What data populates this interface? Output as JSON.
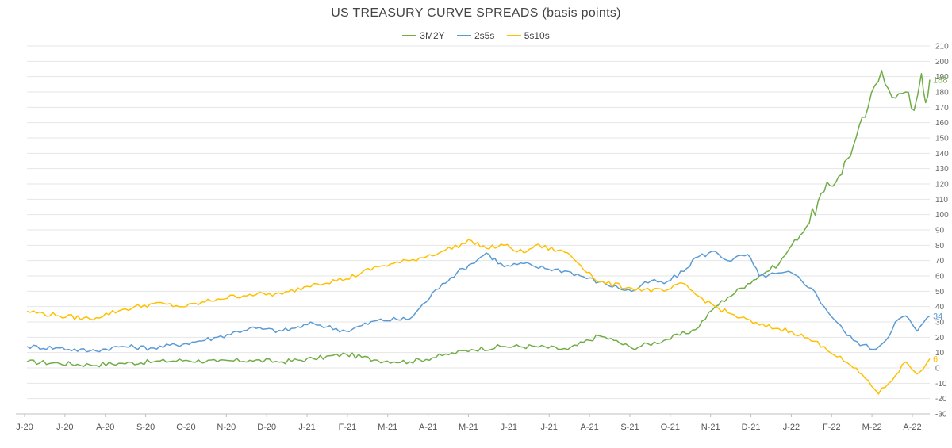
{
  "chart_data": {
    "type": "line",
    "title": "US TREASURY CURVE SPREADS (basis points)",
    "xlabel": "",
    "ylabel": "",
    "ylim": [
      -30,
      210
    ],
    "y_ticks": [
      -30,
      -20,
      -10,
      0,
      10,
      20,
      30,
      40,
      50,
      60,
      70,
      80,
      90,
      100,
      110,
      120,
      130,
      140,
      150,
      160,
      170,
      180,
      190,
      200,
      210
    ],
    "x_tick_labels": [
      "J-20",
      "J-20",
      "A-20",
      "S-20",
      "O-20",
      "N-20",
      "D-20",
      "J-21",
      "F-21",
      "M-21",
      "A-21",
      "M-21",
      "J-21",
      "J-21",
      "A-21",
      "S-21",
      "O-21",
      "N-21",
      "D-21",
      "J-22",
      "F-22",
      "M-22",
      "A-22"
    ],
    "x_axis_start": "2020-01-01",
    "x_axis_end": "2022-05-13",
    "grid": true,
    "legend_position": "top-center",
    "series": [
      {
        "name": "3M2Y",
        "color": "#70AD47",
        "end_label": "188",
        "points": [
          [
            "2020-01-01",
            4
          ],
          [
            "2020-02-01",
            3
          ],
          [
            "2020-03-01",
            2
          ],
          [
            "2020-04-01",
            3
          ],
          [
            "2020-05-01",
            4
          ],
          [
            "2020-06-01",
            5
          ],
          [
            "2020-07-01",
            4
          ],
          [
            "2020-08-01",
            5
          ],
          [
            "2020-09-01",
            4
          ],
          [
            "2020-10-01",
            6
          ],
          [
            "2020-11-01",
            9
          ],
          [
            "2020-12-01",
            5
          ],
          [
            "2021-01-01",
            4
          ],
          [
            "2021-02-01",
            8
          ],
          [
            "2021-03-01",
            12
          ],
          [
            "2021-04-01",
            14
          ],
          [
            "2021-05-01",
            14
          ],
          [
            "2021-06-01",
            12
          ],
          [
            "2021-07-01",
            21
          ],
          [
            "2021-07-15",
            18
          ],
          [
            "2021-08-01",
            13
          ],
          [
            "2021-09-01",
            18
          ],
          [
            "2021-10-01",
            25
          ],
          [
            "2021-10-20",
            40
          ],
          [
            "2021-11-01",
            46
          ],
          [
            "2021-11-20",
            55
          ],
          [
            "2021-12-01",
            60
          ],
          [
            "2021-12-20",
            68
          ],
          [
            "2022-01-01",
            80
          ],
          [
            "2022-01-15",
            92
          ],
          [
            "2022-02-01",
            115
          ],
          [
            "2022-02-15",
            125
          ],
          [
            "2022-03-01",
            145
          ],
          [
            "2022-03-15",
            170
          ],
          [
            "2022-03-28",
            194
          ],
          [
            "2022-04-10",
            176
          ],
          [
            "2022-04-20",
            180
          ],
          [
            "2022-04-28",
            168
          ],
          [
            "2022-05-05",
            192
          ],
          [
            "2022-05-09",
            173
          ],
          [
            "2022-05-13",
            188
          ]
        ]
      },
      {
        "name": "2s5s",
        "color": "#5B9BD5",
        "end_label": "34",
        "points": [
          [
            "2020-01-01",
            14
          ],
          [
            "2020-02-01",
            13
          ],
          [
            "2020-03-01",
            11
          ],
          [
            "2020-04-01",
            14
          ],
          [
            "2020-05-01",
            13
          ],
          [
            "2020-06-01",
            16
          ],
          [
            "2020-07-01",
            20
          ],
          [
            "2020-08-01",
            26
          ],
          [
            "2020-09-01",
            24
          ],
          [
            "2020-10-01",
            29
          ],
          [
            "2020-11-01",
            24
          ],
          [
            "2020-12-01",
            31
          ],
          [
            "2021-01-01",
            32
          ],
          [
            "2021-02-01",
            55
          ],
          [
            "2021-02-15",
            62
          ],
          [
            "2021-03-01",
            68
          ],
          [
            "2021-03-15",
            75
          ],
          [
            "2021-04-01",
            66
          ],
          [
            "2021-04-20",
            68
          ],
          [
            "2021-05-01",
            66
          ],
          [
            "2021-06-01",
            63
          ],
          [
            "2021-07-01",
            56
          ],
          [
            "2021-08-01",
            50
          ],
          [
            "2021-08-20",
            57
          ],
          [
            "2021-09-01",
            55
          ],
          [
            "2021-09-20",
            63
          ],
          [
            "2021-10-01",
            72
          ],
          [
            "2021-10-20",
            76
          ],
          [
            "2021-11-01",
            70
          ],
          [
            "2021-11-20",
            74
          ],
          [
            "2021-12-01",
            60
          ],
          [
            "2022-01-01",
            62
          ],
          [
            "2022-01-20",
            52
          ],
          [
            "2022-02-01",
            40
          ],
          [
            "2022-02-20",
            24
          ],
          [
            "2022-03-01",
            18
          ],
          [
            "2022-03-20",
            12
          ],
          [
            "2022-04-01",
            18
          ],
          [
            "2022-04-10",
            30
          ],
          [
            "2022-04-20",
            34
          ],
          [
            "2022-05-01",
            24
          ],
          [
            "2022-05-13",
            34
          ]
        ]
      },
      {
        "name": "5s10s",
        "color": "#FFC000",
        "end_label": "6",
        "points": [
          [
            "2020-01-01",
            37
          ],
          [
            "2020-02-01",
            34
          ],
          [
            "2020-03-01",
            32
          ],
          [
            "2020-04-01",
            38
          ],
          [
            "2020-05-01",
            42
          ],
          [
            "2020-06-01",
            40
          ],
          [
            "2020-07-01",
            45
          ],
          [
            "2020-08-01",
            48
          ],
          [
            "2020-09-01",
            48
          ],
          [
            "2020-10-01",
            55
          ],
          [
            "2020-11-01",
            58
          ],
          [
            "2020-12-01",
            66
          ],
          [
            "2021-01-01",
            70
          ],
          [
            "2021-02-01",
            76
          ],
          [
            "2021-03-01",
            83
          ],
          [
            "2021-03-15",
            78
          ],
          [
            "2021-04-01",
            80
          ],
          [
            "2021-04-20",
            75
          ],
          [
            "2021-05-01",
            80
          ],
          [
            "2021-06-01",
            75
          ],
          [
            "2021-07-01",
            56
          ],
          [
            "2021-08-01",
            52
          ],
          [
            "2021-09-01",
            50
          ],
          [
            "2021-09-20",
            55
          ],
          [
            "2021-10-01",
            48
          ],
          [
            "2021-10-20",
            40
          ],
          [
            "2021-11-01",
            36
          ],
          [
            "2021-12-01",
            28
          ],
          [
            "2022-01-01",
            24
          ],
          [
            "2022-02-01",
            14
          ],
          [
            "2022-03-01",
            0
          ],
          [
            "2022-03-15",
            -8
          ],
          [
            "2022-03-25",
            -17
          ],
          [
            "2022-04-10",
            -5
          ],
          [
            "2022-04-20",
            4
          ],
          [
            "2022-05-01",
            -4
          ],
          [
            "2022-05-13",
            6
          ]
        ]
      }
    ]
  }
}
